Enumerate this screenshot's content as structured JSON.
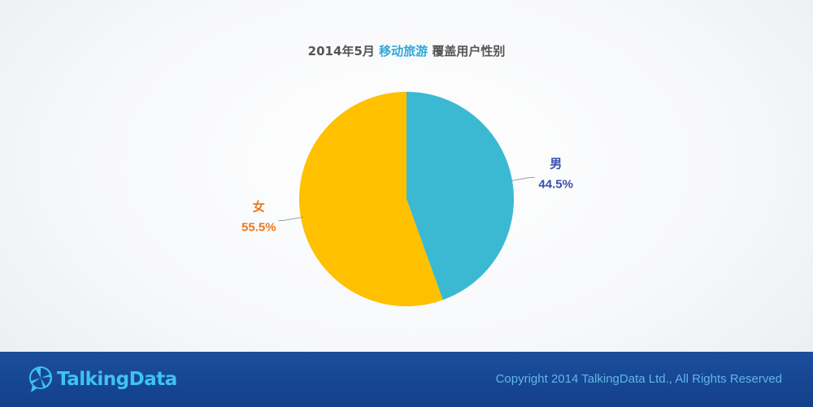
{
  "header": {
    "title_part1": "2014年5月 ",
    "title_highlight": "移动旅游",
    "title_part2": " 覆盖用户性别"
  },
  "chart_data": {
    "type": "pie",
    "title": "2014年5月 移动旅游 覆盖用户性别",
    "slices": [
      {
        "label": "男",
        "value": 44.5,
        "value_label": "44.5%",
        "color": "#3bb9d3",
        "label_color": "#3a4fb0"
      },
      {
        "label": "女",
        "value": 55.5,
        "value_label": "55.5%",
        "color": "#ffc000",
        "label_color": "#e97a1e"
      }
    ],
    "start_angle": "12 o'clock",
    "direction": "clockwise"
  },
  "footer": {
    "logo_text": "TalkingData",
    "copyright": "Copyright 2014 TalkingData Ltd., All Rights Reserved",
    "colors": {
      "bar": "#174796",
      "logo": "#3ec3ef",
      "copyright": "#5fb6e8"
    }
  }
}
